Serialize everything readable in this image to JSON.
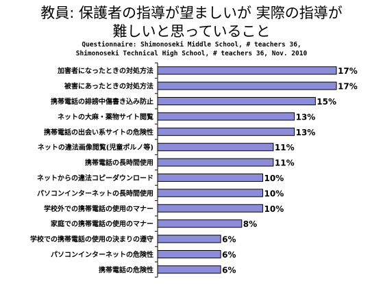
{
  "header": {
    "title_line1": "教員:   保護者の指導が望ましいが 実際の指導が",
    "title_line2": "難しいと思っていること",
    "subtitle_line1": "Questionnaire: Shimonoseki Middle School, # teachers 36,",
    "subtitle_line2": "Shimonoseki Technical High School, # teachers 36, Nov. 2010"
  },
  "chart_data": {
    "type": "bar",
    "orientation": "horizontal",
    "categories": [
      "加害者になったときの対処方法",
      "被害にあったときの対処方法",
      "携帯電話の誹謗中傷書き込み防止",
      "ネットの大麻・薬物サイト閲覧",
      "携帯電話の出会い系サイトの危険性",
      "ネットの違法画像閲覧(児童ポルノ等)",
      "携帯電話の長時間使用",
      "ネットからの違法コピーダウンロード",
      "パソコンインターネットの長時間使用",
      "学校外での携帯電話の使用のマナー",
      "家庭での携帯電話の使用のマナー",
      "学校での携帯電話の使用の決まりの遵守",
      "パソコンインターネットの危険性",
      "携帯電話の危険性"
    ],
    "values": [
      17,
      17,
      15,
      13,
      13,
      11,
      11,
      10,
      10,
      10,
      8,
      6,
      6,
      6
    ],
    "value_labels": [
      "17%",
      "17%",
      "15%",
      "13%",
      "13%",
      "11%",
      "11%",
      "10%",
      "10%",
      "10%",
      "8%",
      "6%",
      "6%",
      "6%"
    ],
    "xlim": [
      0,
      17
    ],
    "bar_color": "#8c8cd9",
    "bar_edge_color": "#000000",
    "grid": false,
    "legend": "none"
  }
}
